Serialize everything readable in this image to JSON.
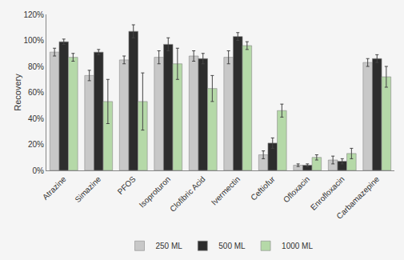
{
  "chart_data": {
    "type": "bar",
    "ylabel": "Recovery",
    "categories": [
      "Atrazine",
      "Simazine",
      "PFOS",
      "Isoproturon",
      "Clofibric Acid",
      "Ivermectin",
      "Ceftiofur",
      "Ofloxacin",
      "Enrofloxacin",
      "Carbamazepine"
    ],
    "series": [
      {
        "name": "250 ML",
        "color": "#c8c8c8",
        "values": [
          91,
          73,
          85,
          87,
          88,
          87,
          12,
          4,
          8,
          83
        ],
        "errors": [
          3,
          4,
          3,
          5,
          4,
          5,
          3,
          1,
          3,
          3
        ]
      },
      {
        "name": "500 ML",
        "color": "#2d2d2d",
        "values": [
          99,
          91,
          107,
          97,
          86,
          103,
          21,
          4,
          7,
          86
        ],
        "errors": [
          2,
          2,
          5,
          5,
          4,
          3,
          4,
          1,
          2,
          3
        ]
      },
      {
        "name": "1000 ML",
        "color": "#b5d9a8",
        "values": [
          87,
          53,
          53,
          82,
          63,
          96,
          46,
          10,
          13,
          72
        ],
        "errors": [
          3,
          17,
          22,
          12,
          10,
          3,
          5,
          2,
          4,
          8
        ]
      }
    ],
    "ylim": [
      0,
      120
    ],
    "yticks": [
      {
        "value": 0,
        "label": "0%"
      },
      {
        "value": 20,
        "label": "20%"
      },
      {
        "value": 40,
        "label": "40%"
      },
      {
        "value": 60,
        "label": "60%"
      },
      {
        "value": 80,
        "label": "80%"
      },
      {
        "value": 100,
        "label": "100%"
      },
      {
        "value": 120,
        "label": "120%"
      }
    ],
    "grid": false,
    "legend": "bottom"
  }
}
